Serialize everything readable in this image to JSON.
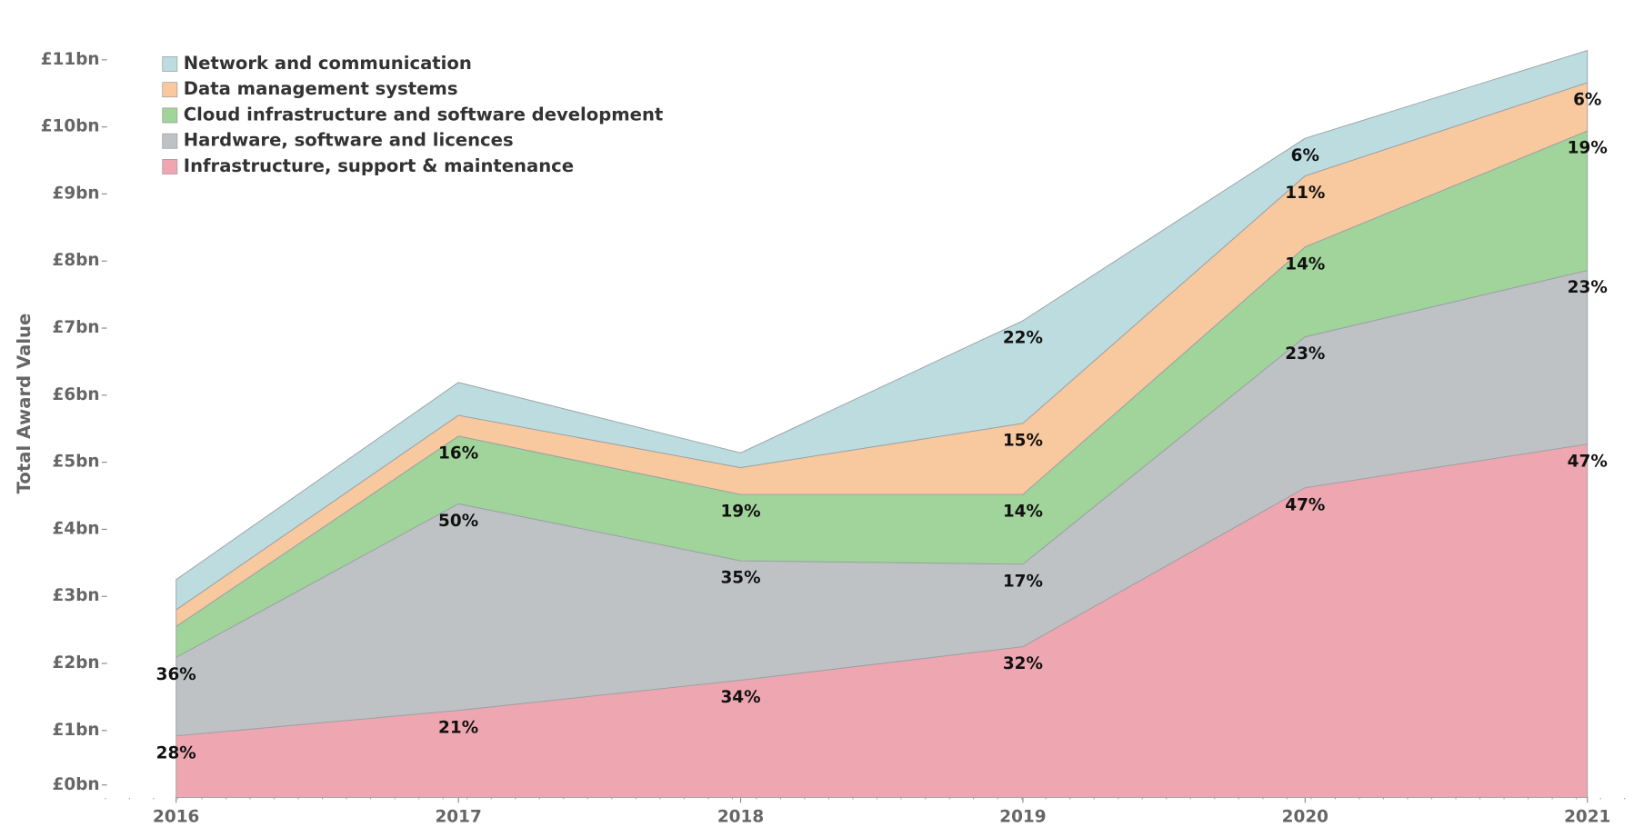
{
  "chart_data": {
    "type": "stacked_area",
    "y_label": "Total Award Value",
    "categories": [
      "2016",
      "2017",
      "2018",
      "2019",
      "2020",
      "2021"
    ],
    "series": [
      {
        "name": "Infrastructure, support & maintenance",
        "color": "#eea7b1",
        "values": [
          0.92,
          1.3,
          1.75,
          2.25,
          4.62,
          5.27
        ],
        "labels": [
          "28%",
          "21%",
          "34%",
          "32%",
          "47%",
          "47%"
        ]
      },
      {
        "name": "Hardware, software and licences",
        "color": "#bfc2c5",
        "values": [
          1.17,
          3.08,
          1.78,
          1.23,
          2.25,
          2.59
        ],
        "labels": [
          "36%",
          "50%",
          "35%",
          "17%",
          "23%",
          "23%"
        ]
      },
      {
        "name": "Cloud infrastructure and software development",
        "color": "#a0d49a",
        "values": [
          0.46,
          1.01,
          0.99,
          1.04,
          1.34,
          2.08
        ],
        "labels": [
          null,
          "16%",
          "19%",
          "14%",
          "14%",
          "19%"
        ]
      },
      {
        "name": "Data management systems",
        "color": "#f8c89e",
        "values": [
          0.25,
          0.31,
          0.4,
          1.06,
          1.06,
          0.72
        ],
        "labels": [
          null,
          null,
          null,
          "15%",
          "11%",
          "6%"
        ]
      },
      {
        "name": "Network and communication",
        "color": "#bcdcdf",
        "values": [
          0.45,
          0.49,
          0.22,
          1.53,
          0.56,
          0.48
        ],
        "labels": [
          null,
          null,
          null,
          "22%",
          "6%",
          null
        ]
      }
    ],
    "ylim": [
      0,
      11.5
    ],
    "yticks": [
      {
        "value": 0,
        "label": "£0bn"
      },
      {
        "value": 1,
        "label": "£1bn"
      },
      {
        "value": 2,
        "label": "£2bn"
      },
      {
        "value": 3,
        "label": "£3bn"
      },
      {
        "value": 4,
        "label": "£4bn"
      },
      {
        "value": 5,
        "label": "£5bn"
      },
      {
        "value": 6,
        "label": "£6bn"
      },
      {
        "value": 7,
        "label": "£7bn"
      },
      {
        "value": 8,
        "label": "£8bn"
      },
      {
        "value": 9,
        "label": "£9bn"
      },
      {
        "value": 10,
        "label": "£10bn"
      },
      {
        "value": 11,
        "label": "£11bn"
      }
    ],
    "legend": "upper left"
  }
}
